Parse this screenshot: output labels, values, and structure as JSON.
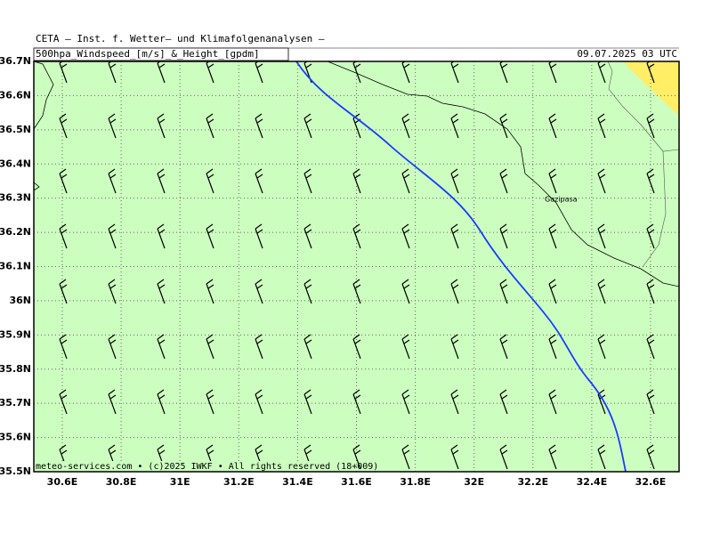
{
  "header": {
    "title": "CETA — Inst. f. Wetter— und Klimafolgenanalysen —",
    "subtitle": "500hpa_Windspeed_[m/s]_&_Height_[gpdm]",
    "date": "09.07.2025 03 UTC"
  },
  "map": {
    "lat_ticks": [
      {
        "value": 36.7,
        "label": "36.7N"
      },
      {
        "value": 36.6,
        "label": "36.6N"
      },
      {
        "value": 36.5,
        "label": "36.5N"
      },
      {
        "value": 36.4,
        "label": "36.4N"
      },
      {
        "value": 36.3,
        "label": "36.3N"
      },
      {
        "value": 36.2,
        "label": "36.2N"
      },
      {
        "value": 36.1,
        "label": "36.1N"
      },
      {
        "value": 36,
        "label": "36N"
      },
      {
        "value": 35.9,
        "label": "35.9N"
      },
      {
        "value": 35.8,
        "label": "35.8N"
      },
      {
        "value": 35.7,
        "label": "35.7N"
      },
      {
        "value": 35.6,
        "label": "35.6N"
      },
      {
        "value": 35.5,
        "label": "35.5N"
      }
    ],
    "lon_ticks": [
      {
        "value": 30.6,
        "label": "30.6E"
      },
      {
        "value": 30.8,
        "label": "30.8E"
      },
      {
        "value": 31,
        "label": "31E"
      },
      {
        "value": 31.2,
        "label": "31.2E"
      },
      {
        "value": 31.4,
        "label": "31.4E"
      },
      {
        "value": 31.6,
        "label": "31.6E"
      },
      {
        "value": 31.8,
        "label": "31.8E"
      },
      {
        "value": 32,
        "label": "32E"
      },
      {
        "value": 32.2,
        "label": "32.2E"
      },
      {
        "value": 32.4,
        "label": "32.4E"
      },
      {
        "value": 32.6,
        "label": "32.6E"
      }
    ],
    "place": "Gazipasa"
  },
  "footer": {
    "credit": "meteo-services.com • (c)2025 IWKF • All rights reserved (18+009)"
  }
}
